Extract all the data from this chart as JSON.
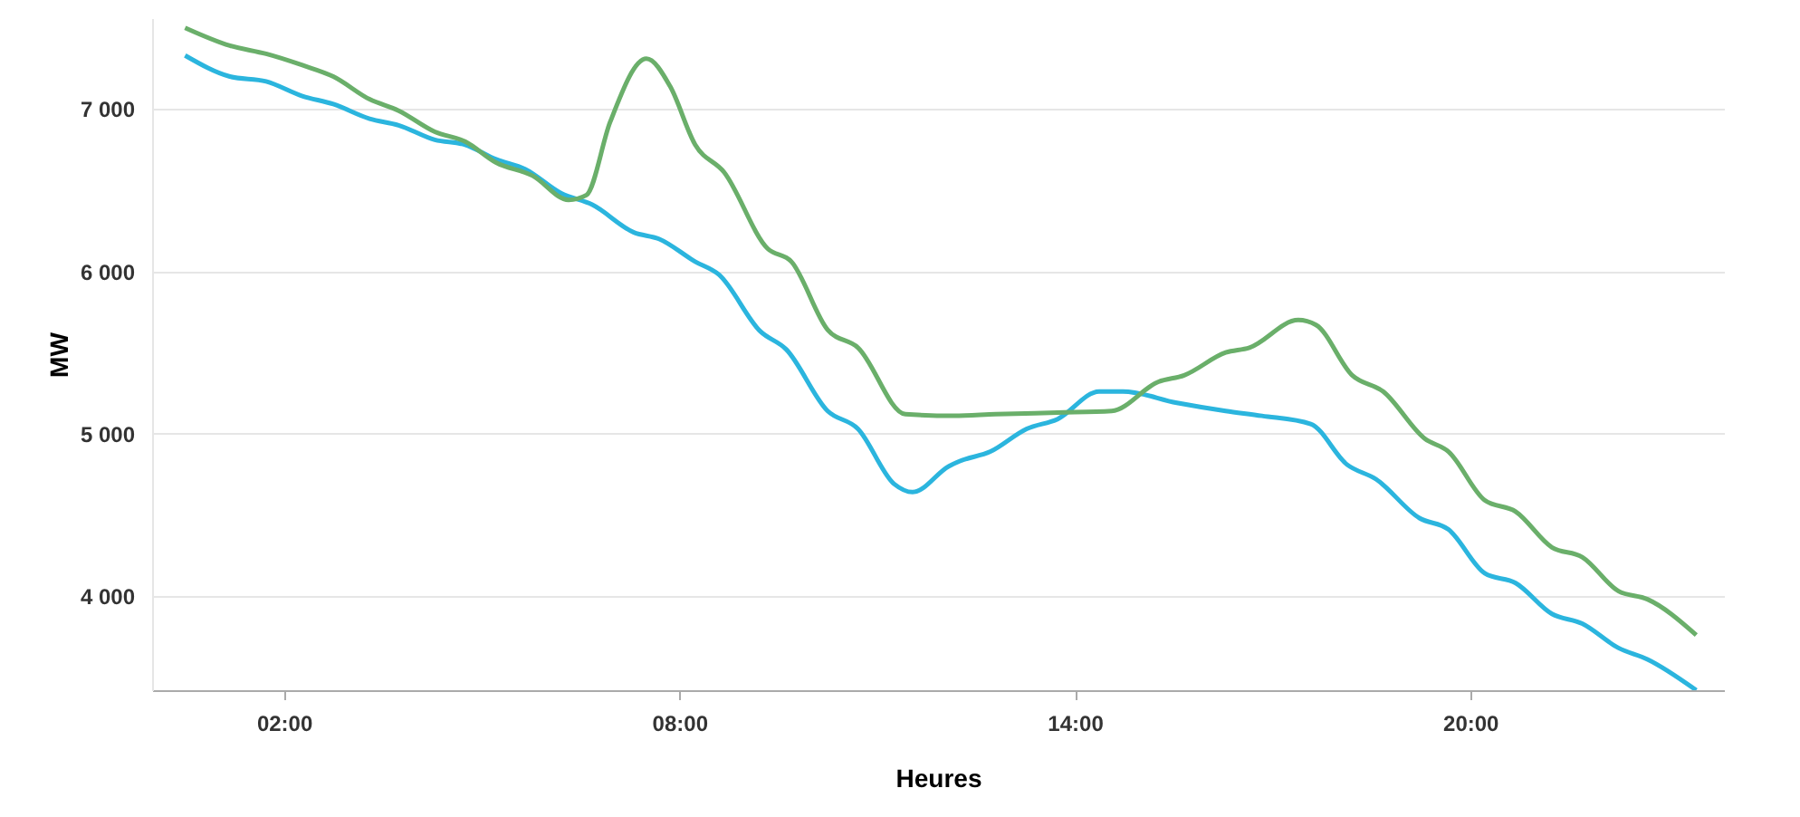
{
  "chart_data": {
    "type": "line",
    "xlabel": "Heures",
    "ylabel": "MW",
    "xlim": [
      0,
      23.85
    ],
    "ylim": [
      3420,
      7560
    ],
    "xticks": [
      {
        "value": 2,
        "label": "02:00"
      },
      {
        "value": 8,
        "label": "08:00"
      },
      {
        "value": 14,
        "label": "14:00"
      },
      {
        "value": 20,
        "label": "20:00"
      }
    ],
    "yticks": [
      {
        "value": 4000,
        "label": "4 000"
      },
      {
        "value": 5000,
        "label": "5 000"
      },
      {
        "value": 6000,
        "label": "6 000"
      },
      {
        "value": 7000,
        "label": "7 000"
      }
    ],
    "grid": "y",
    "marker": "none",
    "line_style": "solid",
    "series": [
      {
        "color": "#2bb5de",
        "x": [
          0.5,
          1.18,
          1.73,
          2.28,
          2.75,
          3.3,
          3.74,
          4.29,
          4.75,
          5.22,
          5.66,
          6.21,
          6.68,
          7.31,
          7.69,
          8.24,
          8.6,
          9.23,
          9.62,
          10.25,
          10.71,
          11.26,
          11.54,
          12.09,
          12.25,
          12.72,
          13.27,
          13.74,
          14.37,
          14.73,
          15.55,
          16.29,
          16.84,
          17.58,
          18.13,
          18.57,
          19.23,
          19.67,
          20.22,
          20.69,
          21.24,
          21.7,
          22.25,
          22.69,
          23.43
        ],
        "values": [
          7330,
          7200,
          7170,
          7080,
          7030,
          6940,
          6900,
          6810,
          6780,
          6690,
          6630,
          6480,
          6410,
          6240,
          6200,
          6060,
          5980,
          5630,
          5520,
          5140,
          5030,
          4690,
          4640,
          4800,
          4830,
          4890,
          5030,
          5090,
          5260,
          5260,
          5190,
          5140,
          5110,
          5060,
          4810,
          4720,
          4480,
          4410,
          4140,
          4080,
          3890,
          3830,
          3680,
          3610,
          3420
        ]
      },
      {
        "color": "#6aaf6a",
        "x": [
          0.5,
          1.18,
          1.73,
          2.28,
          2.75,
          3.3,
          3.74,
          4.29,
          4.75,
          5.22,
          5.77,
          6.32,
          6.59,
          6.95,
          7.5,
          7.86,
          8.24,
          8.68,
          9.34,
          9.7,
          10.25,
          10.71,
          11.43,
          12.17,
          12.8,
          13.74,
          14.56,
          15.27,
          15.66,
          16.29,
          16.65,
          17.39,
          17.66,
          18.21,
          18.68,
          19.31,
          19.67,
          20.22,
          20.69,
          21.24,
          21.7,
          22.25,
          22.69,
          23.43
        ],
        "values": [
          7500,
          7390,
          7340,
          7270,
          7200,
          7060,
          6990,
          6860,
          6800,
          6670,
          6590,
          6440,
          6470,
          6920,
          7310,
          7140,
          6780,
          6610,
          6140,
          6060,
          5640,
          5530,
          5120,
          5110,
          5120,
          5130,
          5140,
          5320,
          5360,
          5500,
          5530,
          5700,
          5670,
          5360,
          5260,
          4970,
          4890,
          4590,
          4520,
          4300,
          4240,
          4030,
          3980,
          3760
        ]
      }
    ]
  }
}
